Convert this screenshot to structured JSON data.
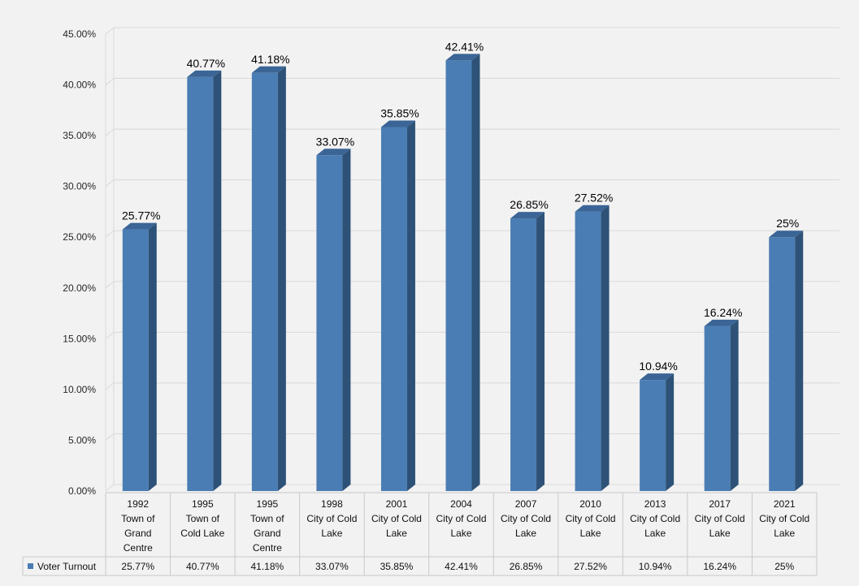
{
  "chart_data": {
    "type": "bar",
    "style": "3d-column",
    "bar_color": "#4a7db3",
    "bar_side_color": "#2e5277",
    "bar_top_color": "#3a6596",
    "grid": true,
    "ylim": [
      0,
      45
    ],
    "y_ticks": [
      "0.00%",
      "5.00%",
      "10.00%",
      "15.00%",
      "20.00%",
      "25.00%",
      "30.00%",
      "35.00%",
      "40.00%",
      "45.00%"
    ],
    "categories": [
      [
        "1992",
        "Town of",
        "Grand",
        "Centre"
      ],
      [
        "1995",
        "Town of",
        "Cold Lake"
      ],
      [
        "1995",
        "Town of",
        "Grand",
        "Centre"
      ],
      [
        "1998",
        "City of Cold",
        "Lake"
      ],
      [
        "2001",
        "City of Cold",
        "Lake"
      ],
      [
        "2004",
        "City of Cold",
        "Lake"
      ],
      [
        "2007",
        "City of Cold",
        "Lake"
      ],
      [
        "2010",
        "City of Cold",
        "Lake"
      ],
      [
        "2013",
        "City of Cold",
        "Lake"
      ],
      [
        "2017",
        "City of Cold",
        "Lake"
      ],
      [
        "2021",
        "City of Cold",
        "Lake"
      ]
    ],
    "series": [
      {
        "name": "Voter Turnout",
        "values": [
          25.77,
          40.77,
          41.18,
          33.07,
          35.85,
          42.41,
          26.85,
          27.52,
          10.94,
          16.24,
          25
        ],
        "data_labels": [
          "25.77%",
          "40.77%",
          "41.18%",
          "33.07%",
          "35.85%",
          "42.41%",
          "26.85%",
          "27.52%",
          "10.94%",
          "16.24%",
          "25%"
        ]
      }
    ],
    "data_table": true,
    "legend": "data-table-row"
  }
}
